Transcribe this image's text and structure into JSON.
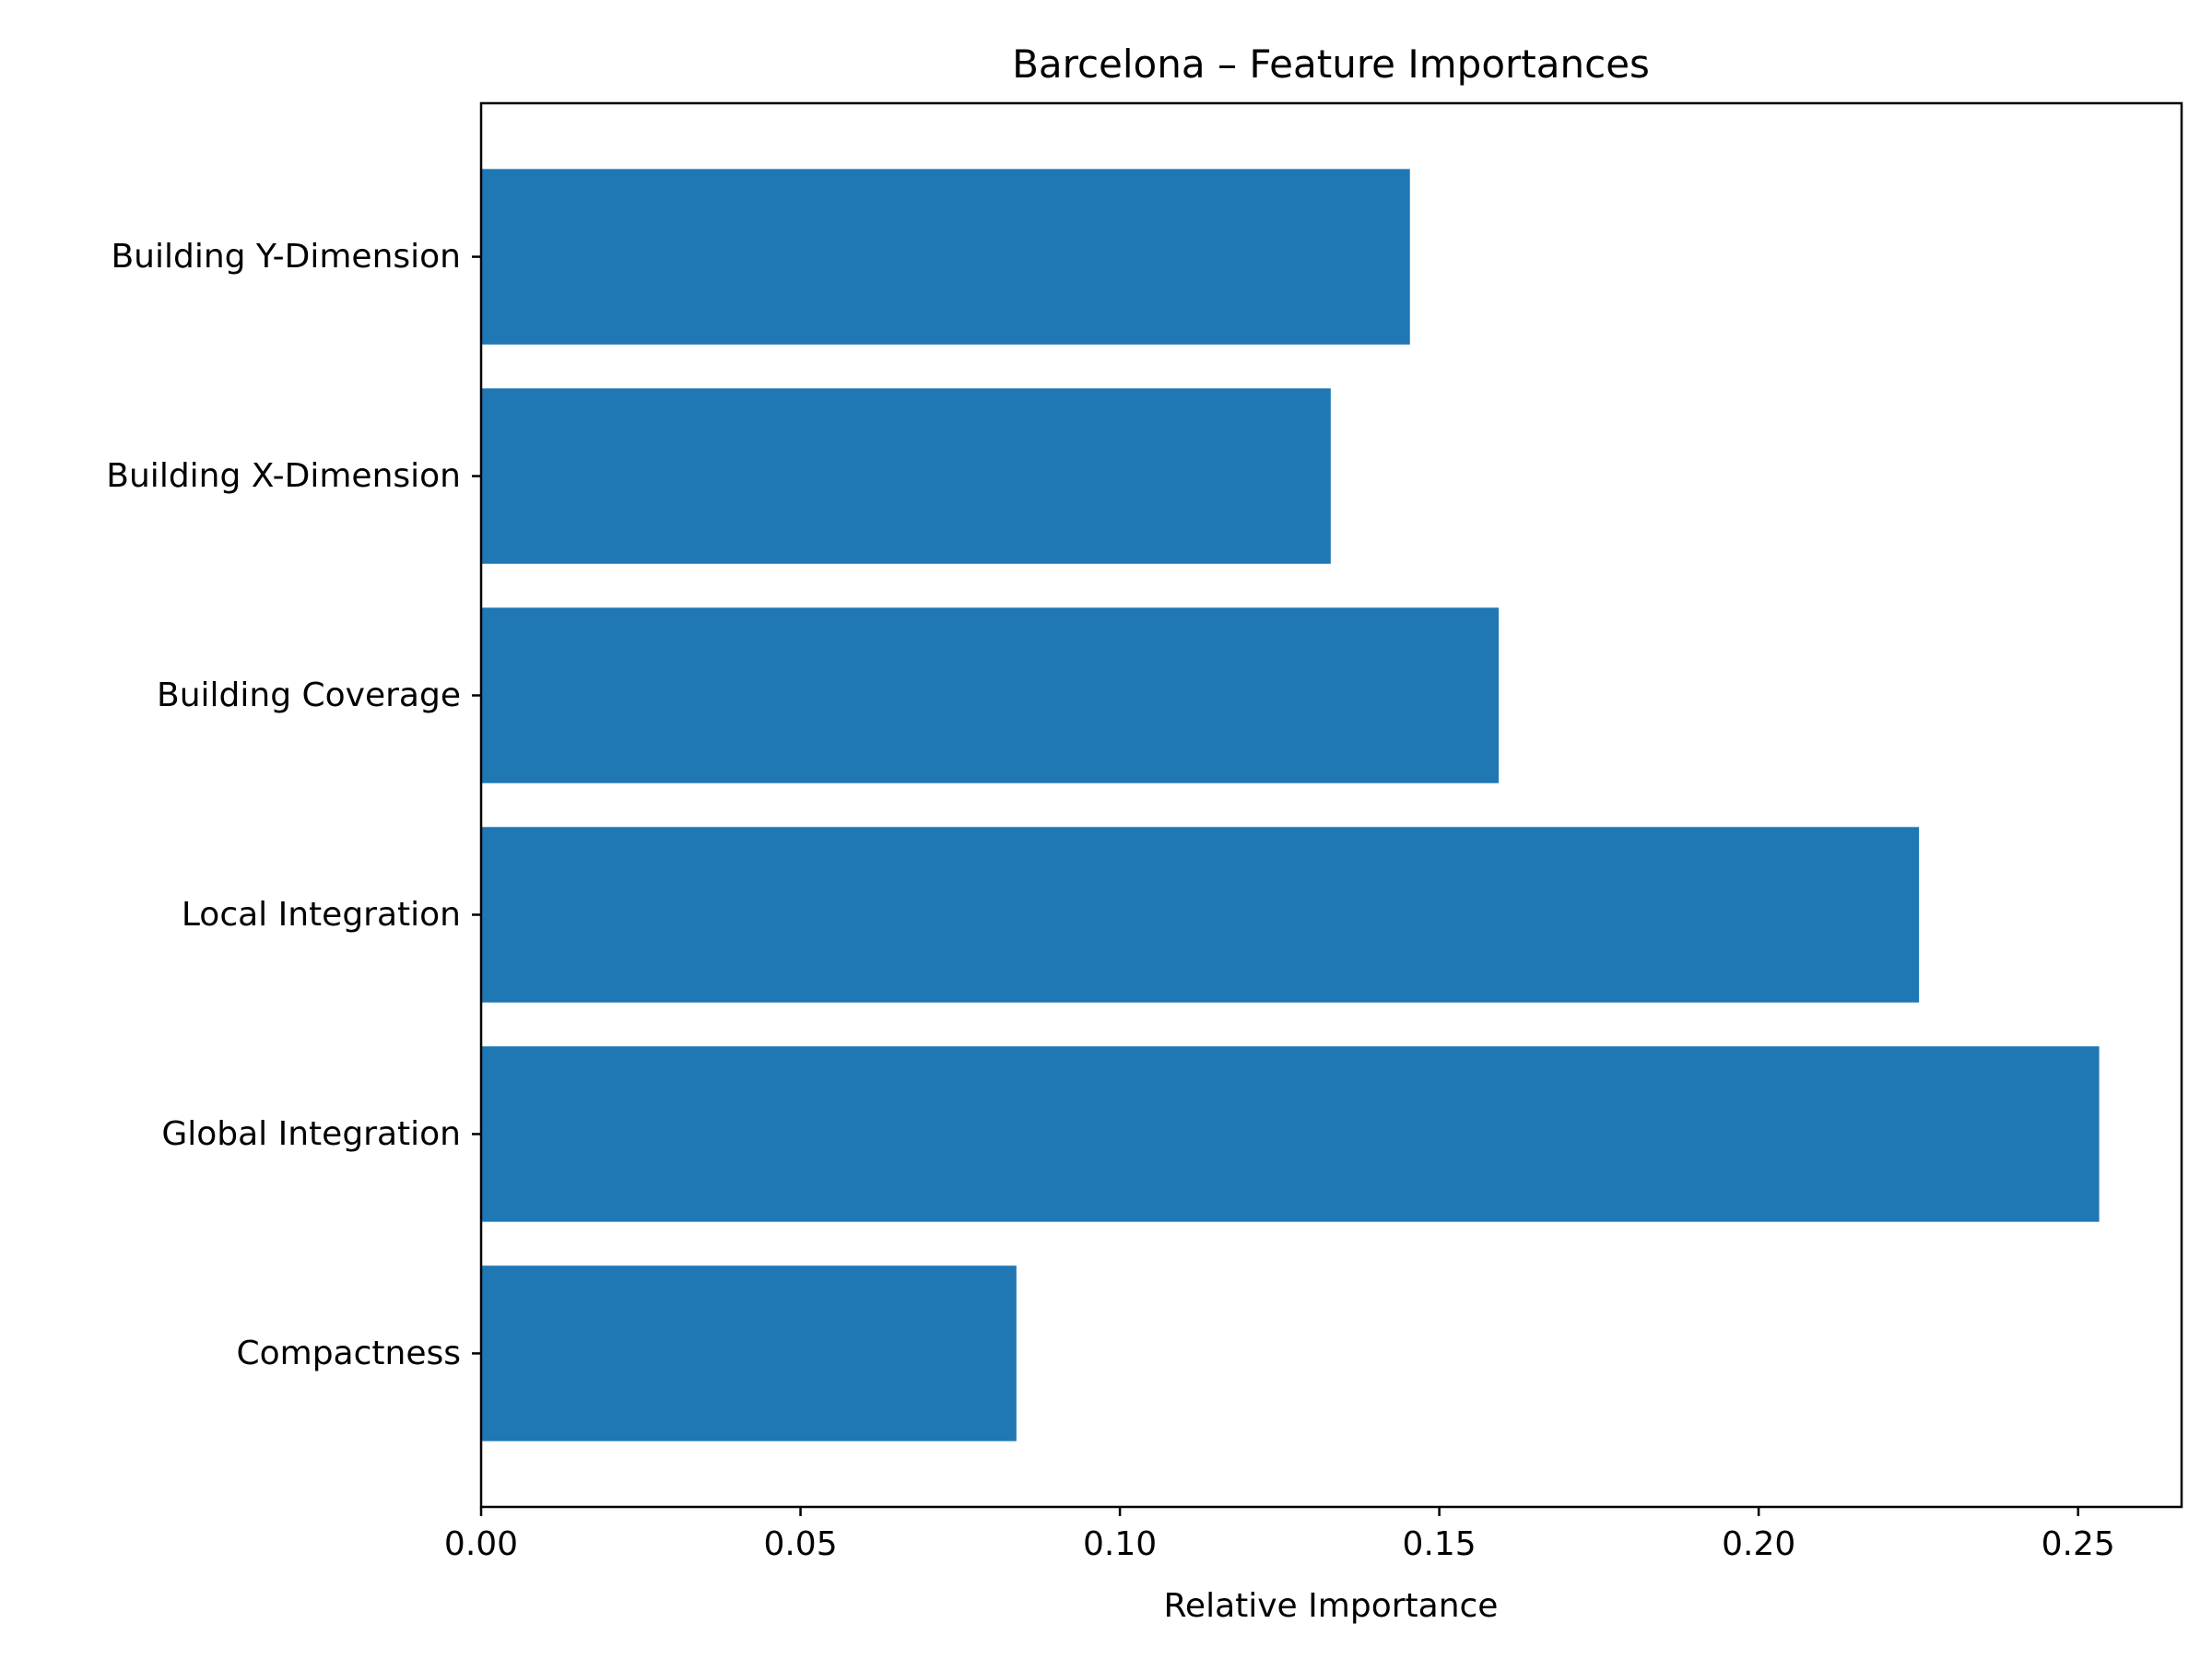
{
  "chart_data": {
    "type": "bar",
    "orientation": "horizontal",
    "title": "Barcelona – Feature Importances",
    "xlabel": "Relative Importance",
    "ylabel": "",
    "categories": [
      "Compactness",
      "Global Integration",
      "Local Integration",
      "Building Coverage",
      "Building X-Dimension",
      "Building Y-Dimension"
    ],
    "values": [
      0.0838,
      0.2533,
      0.2251,
      0.1593,
      0.133,
      0.1454
    ],
    "xlim": [
      0,
      0.2662
    ],
    "xticks": [
      0.0,
      0.05,
      0.1,
      0.15,
      0.2,
      0.25
    ],
    "xtick_labels": [
      "0.00",
      "0.05",
      "0.10",
      "0.15",
      "0.20",
      "0.25"
    ],
    "bar_color": "#1f77b4",
    "grid": false,
    "legend": "none"
  }
}
